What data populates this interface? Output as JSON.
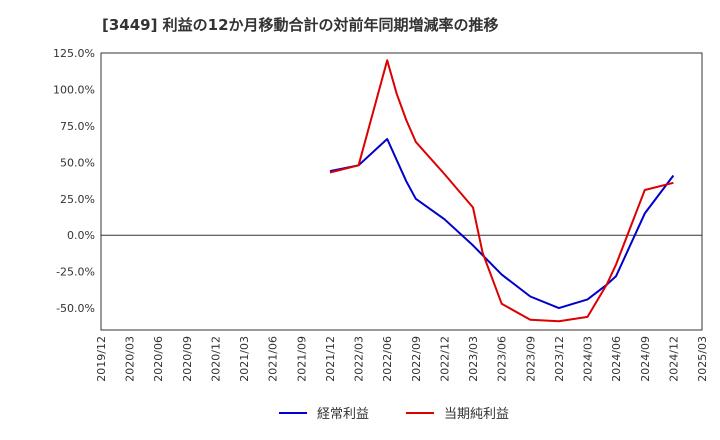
{
  "chart_data": {
    "type": "line",
    "title": "[3449]  利益の12か月移動合計の対前年同期増減率の推移",
    "xlabel": "",
    "ylabel": "",
    "ylim": [
      -65,
      125
    ],
    "y_ticks": [
      125,
      100,
      75,
      50,
      25,
      0,
      -25,
      -50
    ],
    "y_tick_labels": [
      "125.0%",
      "100.0%",
      "75.0%",
      "50.0%",
      "25.0%",
      "0.0%",
      "-25.0%",
      "-50.0%"
    ],
    "x_tick_labels": [
      "2019/12",
      "2020/03",
      "2020/06",
      "2020/09",
      "2020/12",
      "2021/03",
      "2021/06",
      "2021/09",
      "2021/12",
      "2022/03",
      "2022/06",
      "2022/09",
      "2022/12",
      "2023/03",
      "2023/06",
      "2023/09",
      "2023/12",
      "2024/03",
      "2024/06",
      "2024/09",
      "2024/12",
      "2025/03"
    ],
    "series": [
      {
        "name": "経常利益",
        "color": "#0000cc",
        "points": [
          [
            "2021/12",
            44
          ],
          [
            "2022/03",
            48
          ],
          [
            "2022/06",
            66
          ],
          [
            "2022/08",
            37
          ],
          [
            "2022/09",
            25
          ],
          [
            "2022/12",
            11
          ],
          [
            "2023/03",
            -7
          ],
          [
            "2023/06",
            -27
          ],
          [
            "2023/09",
            -42
          ],
          [
            "2023/12",
            -50
          ],
          [
            "2024/03",
            -44
          ],
          [
            "2024/05",
            -34
          ],
          [
            "2024/06",
            -28
          ],
          [
            "2024/09",
            15
          ],
          [
            "2024/12",
            41
          ]
        ]
      },
      {
        "name": "当期純利益",
        "color": "#dd0000",
        "points": [
          [
            "2021/12",
            43
          ],
          [
            "2022/03",
            48
          ],
          [
            "2022/06",
            120
          ],
          [
            "2022/07",
            97
          ],
          [
            "2022/08",
            79
          ],
          [
            "2022/09",
            64
          ],
          [
            "2022/12",
            42
          ],
          [
            "2023/03",
            19
          ],
          [
            "2023/04",
            -12
          ],
          [
            "2023/06",
            -47
          ],
          [
            "2023/09",
            -58
          ],
          [
            "2023/12",
            -59
          ],
          [
            "2024/03",
            -56
          ],
          [
            "2024/05",
            -34
          ],
          [
            "2024/06",
            -20
          ],
          [
            "2024/09",
            31
          ],
          [
            "2024/12",
            36
          ]
        ]
      }
    ],
    "legend_position": "bottom"
  }
}
